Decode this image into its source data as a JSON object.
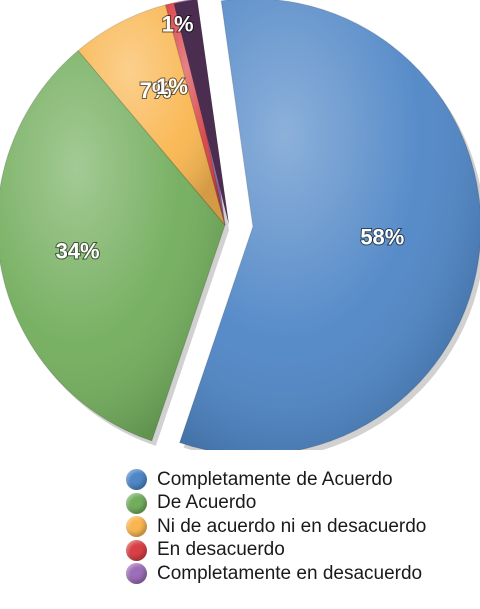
{
  "chart_data": {
    "type": "pie",
    "title": "",
    "categories": [
      "Completamente de Acuerdo",
      "De Acuerdo",
      "Ni de acuerdo ni en desacuerdo",
      "En desacuerdo",
      "Completamente en desacuerdo"
    ],
    "values": [
      58,
      34,
      7,
      1,
      1
    ],
    "value_labels": [
      "58%",
      "34%",
      "7%",
      "1%",
      "1%"
    ],
    "extra_slice_label": "1%",
    "colors": [
      "#4f86c6",
      "#72ad5c",
      "#f9b650",
      "#d84045",
      "#9c6db8"
    ],
    "exploded_slice_colors": [
      "#4f86c6",
      "#4a2d4f"
    ],
    "legend_position": "bottom"
  }
}
